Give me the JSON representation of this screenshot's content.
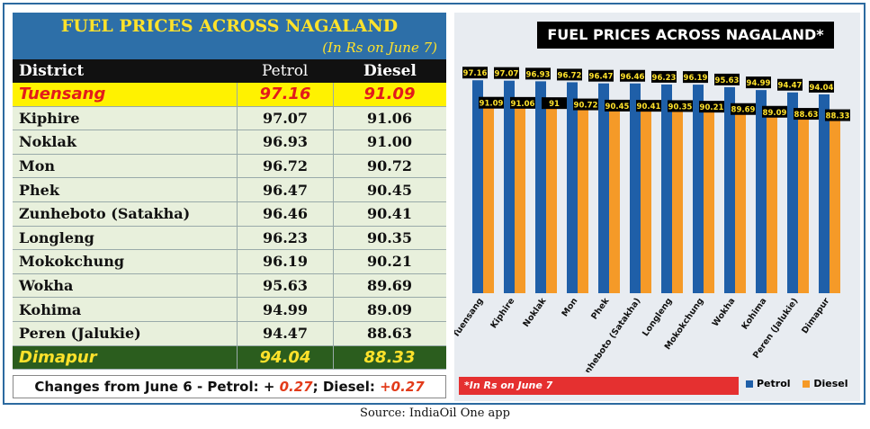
{
  "table": {
    "title": "FUEL PRICES ACROSS NAGALAND",
    "subtitle": "(In Rs on June 7)",
    "headers": [
      "District",
      "Petrol",
      "Diesel"
    ],
    "rows": [
      [
        "Tuensang",
        "97.16",
        "91.09"
      ],
      [
        "Kiphire",
        "97.07",
        "91.06"
      ],
      [
        "Noklak",
        "96.93",
        "91.00"
      ],
      [
        "Mon",
        "96.72",
        "90.72"
      ],
      [
        "Phek",
        "96.47",
        "90.45"
      ],
      [
        "Zunheboto (Satakha)",
        "96.46",
        "90.41"
      ],
      [
        "Longleng",
        "96.23",
        "90.35"
      ],
      [
        "Mokokchung",
        "96.19",
        "90.21"
      ],
      [
        "Wokha",
        "95.63",
        "89.69"
      ],
      [
        "Kohima",
        "94.99",
        "89.09"
      ],
      [
        "Peren (Jalukie)",
        "94.47",
        "88.63"
      ],
      [
        "Dimapur",
        "94.04",
        "88.33"
      ]
    ],
    "changes_prefix": "Changes from June 6 -  Petrol: + ",
    "petrol_change": "0.27",
    "diesel_label": "; Diesel: ",
    "diesel_change": "+0.27"
  },
  "source": "Source: IndiaOil One app",
  "chart_data": {
    "type": "bar",
    "title": "FUEL PRICES ACROSS NAGALAND*",
    "categories": [
      "Tuensang",
      "Kiphire",
      "Noklak",
      "Mon",
      "Phek",
      "Zunheboto (Satakha)",
      "Longleng",
      "Mokokchung",
      "Wokha",
      "Kohima",
      "Peren (Jalukie)",
      "Dimapur"
    ],
    "series": [
      {
        "name": "Petrol",
        "values": [
          97.16,
          97.07,
          96.93,
          96.72,
          96.47,
          96.46,
          96.23,
          96.19,
          95.63,
          94.99,
          94.47,
          94.04
        ],
        "labels": [
          "97.16",
          "97.07",
          "96.93",
          "96.72",
          "96.47",
          "96.46",
          "96.23",
          "96.19",
          "95.63",
          "94.99",
          "94.47",
          "94.04"
        ],
        "color": "#1f5fa8"
      },
      {
        "name": "Diesel",
        "values": [
          91.09,
          91.06,
          91.0,
          90.72,
          90.45,
          90.41,
          90.35,
          90.21,
          89.69,
          89.09,
          88.63,
          88.33
        ],
        "labels": [
          "91.09",
          "91.06",
          "91",
          "90.72",
          "90.45",
          "90.41",
          "90.35",
          "90.21",
          "89.69",
          "89.09",
          "88.63",
          "88.33"
        ],
        "color": "#f59a28"
      }
    ],
    "footnote": "*In Rs on June 7",
    "legend_position": "bottom-right",
    "grid": false
  }
}
